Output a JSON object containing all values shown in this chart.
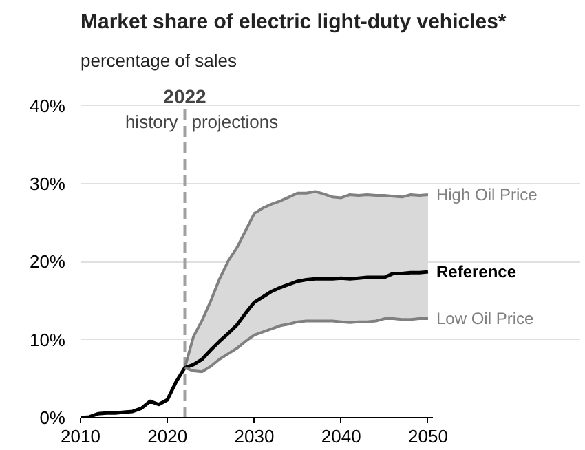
{
  "chart_data": {
    "type": "line",
    "title": "Market share of electric light-duty vehicles*",
    "subtitle": "percentage of sales",
    "x": [
      2010,
      2011,
      2012,
      2013,
      2014,
      2015,
      2016,
      2017,
      2018,
      2019,
      2020,
      2021,
      2022,
      2023,
      2024,
      2025,
      2026,
      2027,
      2028,
      2029,
      2030,
      2031,
      2032,
      2033,
      2034,
      2035,
      2036,
      2037,
      2038,
      2039,
      2040,
      2041,
      2042,
      2043,
      2044,
      2045,
      2046,
      2047,
      2048,
      2049,
      2050
    ],
    "series": [
      {
        "name": "High Oil Price",
        "color": "#808080",
        "values": [
          null,
          null,
          null,
          null,
          null,
          null,
          null,
          null,
          null,
          null,
          null,
          null,
          6.4,
          10.4,
          12.5,
          15.0,
          17.8,
          20.1,
          21.8,
          24.0,
          26.2,
          26.9,
          27.4,
          27.8,
          28.3,
          28.8,
          28.8,
          29.0,
          28.7,
          28.3,
          28.2,
          28.6,
          28.5,
          28.6,
          28.5,
          28.5,
          28.4,
          28.3,
          28.6,
          28.5,
          28.6
        ]
      },
      {
        "name": "Reference",
        "color": "#000000",
        "values": [
          0,
          0.1,
          0.5,
          0.6,
          0.6,
          0.7,
          0.8,
          1.2,
          2.1,
          1.7,
          2.3,
          4.6,
          6.4,
          6.8,
          7.5,
          8.7,
          9.8,
          10.8,
          11.9,
          13.4,
          14.8,
          15.5,
          16.2,
          16.7,
          17.1,
          17.5,
          17.7,
          17.8,
          17.8,
          17.8,
          17.9,
          17.8,
          17.9,
          18.0,
          18.0,
          18.0,
          18.5,
          18.5,
          18.6,
          18.6,
          18.7
        ],
        "lower": [
          null,
          null,
          null,
          null,
          null,
          null,
          null,
          null,
          null,
          null,
          null,
          null,
          6.4,
          6.0,
          5.9,
          6.6,
          7.5,
          8.2,
          8.9,
          9.8,
          10.6,
          11.0,
          11.4,
          11.8,
          12.0,
          12.3,
          12.4,
          12.4,
          12.4,
          12.4,
          12.3,
          12.2,
          12.3,
          12.3,
          12.4,
          12.7,
          12.7,
          12.6,
          12.6,
          12.7,
          12.7
        ],
        "upper": [
          null,
          null,
          null,
          null,
          null,
          null,
          null,
          null,
          null,
          null,
          null,
          null,
          6.4,
          10.4,
          12.5,
          15.0,
          17.8,
          20.1,
          21.8,
          24.0,
          26.2,
          26.9,
          27.4,
          27.8,
          28.3,
          28.8,
          28.8,
          29.0,
          28.7,
          28.3,
          28.2,
          28.6,
          28.5,
          28.6,
          28.5,
          28.5,
          28.4,
          28.3,
          28.6,
          28.5,
          28.6
        ]
      },
      {
        "name": "Low Oil Price",
        "color": "#808080",
        "values": [
          null,
          null,
          null,
          null,
          null,
          null,
          null,
          null,
          null,
          null,
          null,
          null,
          6.4,
          6.0,
          5.9,
          6.6,
          7.5,
          8.2,
          8.9,
          9.8,
          10.6,
          11.0,
          11.4,
          11.8,
          12.0,
          12.3,
          12.4,
          12.4,
          12.4,
          12.4,
          12.3,
          12.2,
          12.3,
          12.3,
          12.4,
          12.7,
          12.7,
          12.6,
          12.6,
          12.7,
          12.7
        ]
      }
    ],
    "xlim": [
      2010,
      2050.5
    ],
    "ylim": [
      0,
      40
    ],
    "xticks": [
      2010,
      2020,
      2030,
      2040,
      2050
    ],
    "yticks": [
      {
        "value": 0,
        "label": "0%"
      },
      {
        "value": 10,
        "label": "10%"
      },
      {
        "value": 20,
        "label": "20%"
      },
      {
        "value": 30,
        "label": "30%"
      },
      {
        "value": 40,
        "label": "40%"
      }
    ],
    "grid": "y",
    "line_style": "solid",
    "marker": "none",
    "ref_lines": [
      {
        "axis": "x",
        "value": 2022,
        "label": "2022",
        "color": "#a0a0a0",
        "line_style": "dashed"
      }
    ],
    "annotations": [
      "history",
      "projections"
    ]
  }
}
